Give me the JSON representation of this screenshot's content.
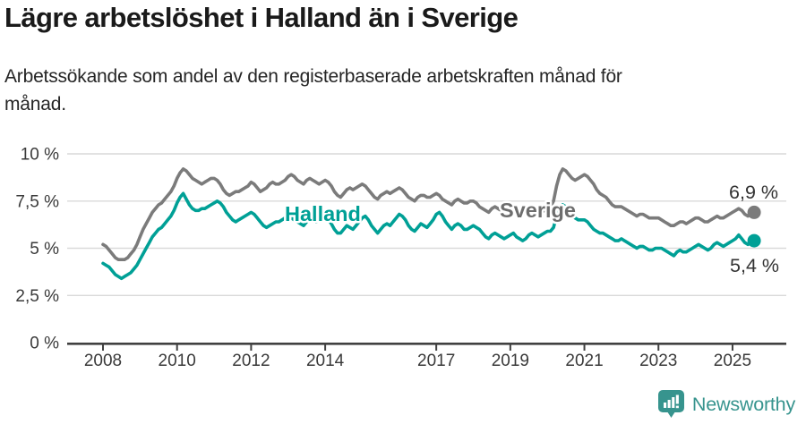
{
  "header": {
    "title": "Lägre arbetslöshet i Halland än i Sverige",
    "subtitle_line1": "Arbetssökande som andel av den registerbaserade arbetskraften månad för",
    "subtitle_line2": "månad."
  },
  "chart_data": {
    "type": "line",
    "unit": "%",
    "x_start": "2008-01",
    "x_end": "2025-08",
    "x_frequency": "monthly",
    "ylim": [
      0,
      10
    ],
    "grid": "horizontal",
    "y_ticks": [
      {
        "label": "0 %",
        "value": 0
      },
      {
        "label": "2,5 %",
        "value": 2.5
      },
      {
        "label": "5 %",
        "value": 5
      },
      {
        "label": "7,5 %",
        "value": 7.5
      },
      {
        "label": "10 %",
        "value": 10
      }
    ],
    "x_tick_labels": [
      "2008",
      "2010",
      "2012",
      "2014",
      "2017",
      "2019",
      "2021",
      "2023",
      "2025"
    ],
    "colors": {
      "gridline": "#d9d9d9",
      "axis": "#404040",
      "tick_text": "#3a3a3a",
      "value_label_text": "#333333"
    },
    "series": [
      {
        "name": "Sverige",
        "color": "#7b7b7b",
        "label_color": "#6d6d6d",
        "end_label": "6,9 %",
        "end_value": 6.9,
        "values": [
          5.2,
          5.1,
          4.9,
          4.7,
          4.5,
          4.4,
          4.4,
          4.4,
          4.5,
          4.7,
          4.9,
          5.2,
          5.6,
          6.0,
          6.3,
          6.6,
          6.9,
          7.1,
          7.3,
          7.4,
          7.6,
          7.8,
          8.0,
          8.3,
          8.7,
          9.0,
          9.2,
          9.1,
          8.9,
          8.7,
          8.6,
          8.5,
          8.4,
          8.5,
          8.6,
          8.7,
          8.7,
          8.6,
          8.4,
          8.1,
          7.9,
          7.8,
          7.9,
          8.0,
          8.0,
          8.1,
          8.2,
          8.3,
          8.5,
          8.4,
          8.2,
          8.0,
          8.1,
          8.2,
          8.4,
          8.5,
          8.4,
          8.4,
          8.5,
          8.6,
          8.8,
          8.9,
          8.8,
          8.6,
          8.5,
          8.4,
          8.6,
          8.7,
          8.6,
          8.5,
          8.4,
          8.5,
          8.6,
          8.5,
          8.3,
          8.0,
          7.8,
          7.7,
          7.9,
          8.1,
          8.2,
          8.1,
          8.2,
          8.3,
          8.4,
          8.3,
          8.1,
          7.9,
          7.7,
          7.6,
          7.8,
          7.9,
          8.0,
          7.9,
          8.0,
          8.1,
          8.2,
          8.1,
          7.9,
          7.7,
          7.6,
          7.5,
          7.7,
          7.8,
          7.8,
          7.7,
          7.7,
          7.8,
          7.9,
          7.8,
          7.6,
          7.5,
          7.4,
          7.3,
          7.5,
          7.6,
          7.5,
          7.4,
          7.4,
          7.5,
          7.5,
          7.4,
          7.2,
          7.1,
          7.0,
          6.9,
          7.1,
          7.2,
          7.1,
          7.0,
          6.9,
          7.0,
          7.0,
          7.0,
          6.9,
          6.8,
          6.8,
          6.9,
          7.0,
          7.1,
          7.0,
          6.9,
          6.9,
          7.0,
          7.1,
          7.2,
          7.5,
          8.3,
          8.9,
          9.2,
          9.1,
          8.9,
          8.7,
          8.6,
          8.7,
          8.8,
          8.9,
          8.8,
          8.6,
          8.4,
          8.1,
          7.9,
          7.8,
          7.7,
          7.5,
          7.3,
          7.2,
          7.2,
          7.2,
          7.1,
          7.0,
          6.9,
          6.8,
          6.7,
          6.8,
          6.8,
          6.7,
          6.6,
          6.6,
          6.6,
          6.6,
          6.5,
          6.4,
          6.3,
          6.2,
          6.2,
          6.3,
          6.4,
          6.4,
          6.3,
          6.4,
          6.5,
          6.6,
          6.6,
          6.5,
          6.4,
          6.4,
          6.5,
          6.6,
          6.7,
          6.6,
          6.6,
          6.7,
          6.8,
          6.9,
          7.0,
          7.1,
          7.0,
          6.8,
          6.7,
          6.8,
          6.9
        ]
      },
      {
        "name": "Halland",
        "color": "#00a096",
        "label_color": "#00a096",
        "end_label": "5,4 %",
        "end_value": 5.4,
        "values": [
          4.2,
          4.1,
          4.0,
          3.8,
          3.6,
          3.5,
          3.4,
          3.5,
          3.6,
          3.7,
          3.9,
          4.1,
          4.4,
          4.7,
          5.0,
          5.3,
          5.6,
          5.8,
          6.0,
          6.1,
          6.3,
          6.5,
          6.7,
          7.0,
          7.4,
          7.7,
          7.9,
          7.6,
          7.3,
          7.1,
          7.0,
          7.0,
          7.1,
          7.1,
          7.2,
          7.3,
          7.4,
          7.5,
          7.4,
          7.2,
          6.9,
          6.7,
          6.5,
          6.4,
          6.5,
          6.6,
          6.7,
          6.8,
          6.9,
          6.8,
          6.6,
          6.4,
          6.2,
          6.1,
          6.2,
          6.3,
          6.4,
          6.4,
          6.5,
          6.6,
          6.7,
          6.6,
          6.5,
          6.4,
          6.3,
          6.2,
          6.4,
          6.5,
          6.5,
          6.4,
          6.5,
          6.6,
          6.6,
          6.5,
          6.3,
          6.0,
          5.8,
          5.8,
          6.0,
          6.2,
          6.1,
          6.0,
          6.2,
          6.4,
          6.6,
          6.7,
          6.5,
          6.2,
          6.0,
          5.8,
          6.0,
          6.2,
          6.3,
          6.2,
          6.4,
          6.6,
          6.8,
          6.7,
          6.5,
          6.2,
          6.0,
          5.9,
          6.1,
          6.3,
          6.2,
          6.1,
          6.3,
          6.5,
          6.8,
          6.9,
          6.7,
          6.4,
          6.2,
          6.0,
          6.2,
          6.3,
          6.2,
          6.0,
          6.0,
          6.1,
          6.2,
          6.1,
          6.0,
          5.8,
          5.6,
          5.5,
          5.7,
          5.8,
          5.7,
          5.6,
          5.5,
          5.6,
          5.7,
          5.8,
          5.6,
          5.5,
          5.4,
          5.5,
          5.7,
          5.8,
          5.7,
          5.6,
          5.7,
          5.8,
          5.9,
          5.9,
          6.1,
          6.7,
          7.1,
          7.3,
          7.2,
          7.0,
          6.8,
          6.6,
          6.5,
          6.5,
          6.5,
          6.4,
          6.2,
          6.0,
          5.9,
          5.8,
          5.8,
          5.7,
          5.6,
          5.5,
          5.4,
          5.4,
          5.5,
          5.4,
          5.3,
          5.2,
          5.1,
          5.0,
          5.1,
          5.1,
          5.0,
          4.9,
          4.9,
          5.0,
          5.0,
          5.0,
          4.9,
          4.8,
          4.7,
          4.6,
          4.8,
          4.9,
          4.8,
          4.8,
          4.9,
          5.0,
          5.1,
          5.2,
          5.1,
          5.0,
          4.9,
          5.0,
          5.2,
          5.3,
          5.2,
          5.1,
          5.2,
          5.3,
          5.4,
          5.5,
          5.7,
          5.5,
          5.3,
          5.2,
          5.3,
          5.4
        ]
      }
    ]
  },
  "branding": {
    "logo_text": "Newsworthy",
    "logo_color": "#37948e",
    "logo_icon": "speech-bubble-with-bar-chart-and-exclamation"
  }
}
